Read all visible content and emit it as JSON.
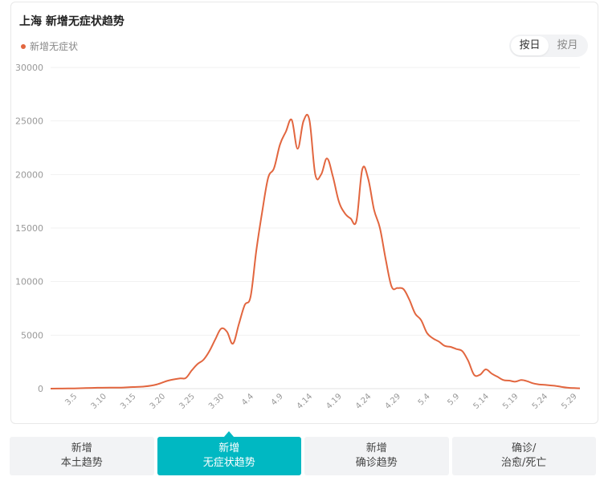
{
  "header": {
    "title": "上海 新增无症状趋势"
  },
  "legend": {
    "label": "新增无症状",
    "color": "#e2663f"
  },
  "toggle": {
    "day_label": "按日",
    "month_label": "按月"
  },
  "tabs": [
    {
      "line1": "新增",
      "line2": "本土趋势"
    },
    {
      "line1": "新增",
      "line2": "无症状趋势"
    },
    {
      "line1": "新增",
      "line2": "确诊趋势"
    },
    {
      "line1": "确诊/",
      "line2": "治愈/死亡"
    }
  ],
  "colors": {
    "accent": "#00b8c2",
    "series": "#e2663f"
  },
  "chart_data": {
    "type": "line",
    "ylim": [
      0,
      30000
    ],
    "yticks": [
      "0",
      "5000",
      "10000",
      "15000",
      "20000",
      "25000",
      "30000"
    ],
    "xticks": [
      "3.5",
      "3.10",
      "3.15",
      "3.20",
      "3.25",
      "3.30",
      "4.4",
      "4.9",
      "4.14",
      "4.19",
      "4.24",
      "4.29",
      "5.4",
      "5.9",
      "5.14",
      "5.19",
      "5.24",
      "5.29"
    ],
    "grid": true,
    "series": [
      {
        "name": "新增无症状",
        "color": "#e2663f",
        "points": [
          [
            "3.1",
            0
          ],
          [
            "3.3",
            10
          ],
          [
            "3.5",
            20
          ],
          [
            "3.7",
            50
          ],
          [
            "3.9",
            80
          ],
          [
            "3.11",
            90
          ],
          [
            "3.13",
            100
          ],
          [
            "3.15",
            150
          ],
          [
            "3.17",
            200
          ],
          [
            "3.19",
            380
          ],
          [
            "3.21",
            750
          ],
          [
            "3.23",
            950
          ],
          [
            "3.24",
            1000
          ],
          [
            "3.25",
            1700
          ],
          [
            "3.26",
            2300
          ],
          [
            "3.27",
            2700
          ],
          [
            "3.28",
            3500
          ],
          [
            "3.29",
            4600
          ],
          [
            "3.30",
            5600
          ],
          [
            "3.31",
            5300
          ],
          [
            "4.1",
            4200
          ],
          [
            "4.2",
            6000
          ],
          [
            "4.3",
            7800
          ],
          [
            "4.4",
            8600
          ],
          [
            "4.5",
            13000
          ],
          [
            "4.6",
            16600
          ],
          [
            "4.7",
            19700
          ],
          [
            "4.8",
            20600
          ],
          [
            "4.9",
            22800
          ],
          [
            "4.10",
            24000
          ],
          [
            "4.11",
            25100
          ],
          [
            "4.12",
            22400
          ],
          [
            "4.13",
            25000
          ],
          [
            "4.14",
            25100
          ],
          [
            "4.15",
            20000
          ],
          [
            "4.16",
            20000
          ],
          [
            "4.17",
            21500
          ],
          [
            "4.18",
            19800
          ],
          [
            "4.19",
            17500
          ],
          [
            "4.20",
            16400
          ],
          [
            "4.21",
            15900
          ],
          [
            "4.22",
            15700
          ],
          [
            "4.23",
            20500
          ],
          [
            "4.24",
            19600
          ],
          [
            "4.25",
            16700
          ],
          [
            "4.26",
            15000
          ],
          [
            "4.27",
            12000
          ],
          [
            "4.28",
            9500
          ],
          [
            "4.29",
            9400
          ],
          [
            "4.30",
            9300
          ],
          [
            "5.1",
            8300
          ],
          [
            "5.2",
            7000
          ],
          [
            "5.3",
            6400
          ],
          [
            "5.4",
            5200
          ],
          [
            "5.5",
            4700
          ],
          [
            "5.6",
            4400
          ],
          [
            "5.7",
            4000
          ],
          [
            "5.8",
            3900
          ],
          [
            "5.9",
            3700
          ],
          [
            "5.10",
            3500
          ],
          [
            "5.11",
            2600
          ],
          [
            "5.12",
            1300
          ],
          [
            "5.13",
            1300
          ],
          [
            "5.14",
            1800
          ],
          [
            "5.15",
            1400
          ],
          [
            "5.16",
            1100
          ],
          [
            "5.17",
            800
          ],
          [
            "5.18",
            750
          ],
          [
            "5.19",
            650
          ],
          [
            "5.20",
            800
          ],
          [
            "5.21",
            700
          ],
          [
            "5.22",
            500
          ],
          [
            "5.23",
            400
          ],
          [
            "5.24",
            350
          ],
          [
            "5.25",
            300
          ],
          [
            "5.26",
            250
          ],
          [
            "5.27",
            150
          ],
          [
            "5.28",
            80
          ],
          [
            "5.29",
            50
          ],
          [
            "5.30",
            30
          ]
        ]
      }
    ]
  }
}
